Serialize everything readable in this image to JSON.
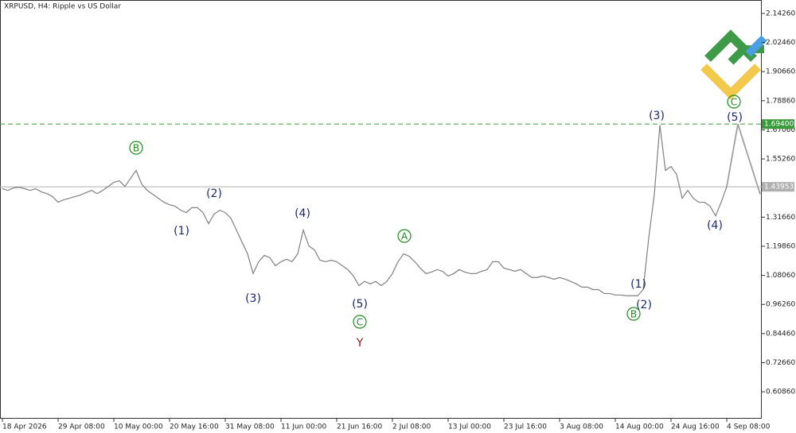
{
  "chart_data": {
    "type": "line",
    "title": "XRPUSD, H4:  Ripple vs US Dollar",
    "categories": [
      "18 Apr 2026",
      null,
      null,
      null,
      null,
      null,
      null,
      null,
      null,
      null,
      "29 Apr 08:00",
      null,
      null,
      null,
      null,
      null,
      null,
      null,
      null,
      null,
      "10 May 00:00",
      null,
      null,
      null,
      null,
      null,
      null,
      null,
      null,
      null,
      "20 May 16:00",
      null,
      null,
      null,
      null,
      null,
      null,
      null,
      null,
      null,
      "31 May 08:00",
      null,
      null,
      null,
      null,
      null,
      null,
      null,
      null,
      null,
      "11 Jun 00:00",
      null,
      null,
      null,
      null,
      null,
      null,
      null,
      null,
      null,
      "21 Jun 16:00",
      null,
      null,
      null,
      null,
      null,
      null,
      null,
      null,
      null,
      "2 Jul 08:00",
      null,
      null,
      null,
      null,
      null,
      null,
      null,
      null,
      null,
      "13 Jul 00:00",
      null,
      null,
      null,
      null,
      null,
      null,
      null,
      null,
      null,
      "23 Jul 16:00",
      null,
      null,
      null,
      null,
      null,
      null,
      null,
      null,
      null,
      "3 Aug 08:00",
      null,
      null,
      null,
      null,
      null,
      null,
      null,
      null,
      null,
      "14 Aug 00:00",
      null,
      null,
      null,
      null,
      null,
      null,
      null,
      null,
      null,
      "24 Aug 16:00",
      null,
      null,
      null,
      null,
      null,
      null,
      null,
      null,
      null,
      "4 Sep 08:00",
      null,
      null,
      null,
      null,
      null,
      null
    ],
    "series": [
      {
        "color": "#808080",
        "values": [
          1.432,
          1.425,
          1.435,
          1.438,
          1.432,
          1.425,
          1.432,
          1.419,
          1.412,
          1.4,
          1.377,
          1.387,
          1.393,
          1.4,
          1.406,
          1.416,
          1.425,
          1.412,
          1.425,
          1.441,
          1.458,
          1.464,
          1.441,
          1.474,
          1.506,
          1.451,
          1.425,
          1.409,
          1.393,
          1.377,
          1.367,
          1.361,
          1.345,
          1.335,
          1.355,
          1.355,
          1.335,
          1.29,
          1.329,
          1.345,
          1.335,
          1.313,
          1.264,
          1.216,
          1.168,
          1.088,
          1.136,
          1.162,
          1.152,
          1.12,
          1.136,
          1.146,
          1.136,
          1.168,
          1.264,
          1.2,
          1.184,
          1.142,
          1.136,
          1.142,
          1.136,
          1.12,
          1.104,
          1.078,
          1.039,
          1.056,
          1.046,
          1.056,
          1.039,
          1.056,
          1.088,
          1.136,
          1.168,
          1.158,
          1.136,
          1.11,
          1.088,
          1.094,
          1.104,
          1.097,
          1.078,
          1.088,
          1.104,
          1.094,
          1.088,
          1.088,
          1.097,
          1.104,
          1.136,
          1.136,
          1.11,
          1.104,
          1.097,
          1.104,
          1.088,
          1.072,
          1.072,
          1.078,
          1.072,
          1.065,
          1.072,
          1.065,
          1.056,
          1.046,
          1.033,
          1.033,
          1.023,
          1.023,
          1.007,
          1.007,
          1.001,
          1.001,
          0.998,
          0.998,
          0.998,
          1.023,
          1.232,
          1.409,
          1.69,
          1.506,
          1.522,
          1.49,
          1.393,
          1.425,
          1.393,
          1.377,
          1.377,
          1.361,
          1.322,
          1.377,
          1.44,
          null,
          null,
          null,
          null,
          null,
          null
        ]
      },
      {
        "color": "#a0a0a0",
        "values": [
          null,
          null,
          null,
          null,
          null,
          null,
          null,
          null,
          null,
          null,
          null,
          null,
          null,
          null,
          null,
          null,
          null,
          null,
          null,
          null,
          null,
          null,
          null,
          null,
          null,
          null,
          null,
          null,
          null,
          null,
          null,
          null,
          null,
          null,
          null,
          null,
          null,
          null,
          null,
          null,
          null,
          null,
          null,
          null,
          null,
          null,
          null,
          null,
          null,
          null,
          null,
          null,
          null,
          null,
          null,
          null,
          null,
          null,
          null,
          null,
          null,
          null,
          null,
          null,
          null,
          null,
          null,
          null,
          null,
          null,
          null,
          null,
          null,
          null,
          null,
          null,
          null,
          null,
          null,
          null,
          null,
          null,
          null,
          null,
          null,
          null,
          null,
          null,
          null,
          null,
          null,
          null,
          null,
          null,
          null,
          null,
          null,
          null,
          null,
          null,
          null,
          null,
          null,
          null,
          null,
          null,
          null,
          null,
          null,
          null,
          null,
          null,
          null,
          null,
          null,
          null,
          null,
          null,
          null,
          null,
          null,
          null,
          null,
          null,
          null,
          null,
          null,
          null,
          null,
          null,
          1.44,
          1.567,
          1.694,
          1.623,
          1.552,
          1.481,
          1.41
        ]
      }
    ],
    "ylim": [
      0.4995,
      2.197
    ],
    "yticks": [
      {
        "value": 2.1426,
        "label": "2.14260"
      },
      {
        "value": 2.0246,
        "label": "2.02460"
      },
      {
        "value": 1.9066,
        "label": "1.90660"
      },
      {
        "value": 1.7886,
        "label": "1.78860"
      },
      {
        "value": 1.6706,
        "label": "1.67060"
      },
      {
        "value": 1.5526,
        "label": "1.55260"
      },
      {
        "value": 1.3166,
        "label": "1.31660"
      },
      {
        "value": 1.1986,
        "label": "1.19860"
      },
      {
        "value": 1.0806,
        "label": "1.08060"
      },
      {
        "value": 0.9626,
        "label": "0.96260"
      },
      {
        "value": 0.8446,
        "label": "0.84460"
      },
      {
        "value": 0.7266,
        "label": "0.72660"
      },
      {
        "value": 0.6086,
        "label": "0.60860"
      }
    ],
    "hlines": [
      {
        "value": 1.694,
        "label": "1.69400",
        "color": "#3a9a3a",
        "dashed": true
      },
      {
        "value": 1.43953,
        "label": "1.43953",
        "color": "#b0b0b0",
        "dashed": false
      }
    ],
    "annotations": [
      {
        "text": "B",
        "circled": true,
        "color": "#1f8a1f"
      },
      {
        "text": "(1)",
        "circled": false,
        "color": "#1c2a6e"
      },
      {
        "text": "(2)",
        "circled": false,
        "color": "#1c2a6e"
      },
      {
        "text": "(3)",
        "circled": false,
        "color": "#1c2a6e"
      },
      {
        "text": "(4)",
        "circled": false,
        "color": "#1c2a6e"
      },
      {
        "text": "(5)",
        "circled": false,
        "color": "#1c2a6e"
      },
      {
        "text": "C",
        "circled": true,
        "color": "#1f8a1f"
      },
      {
        "text": "Y",
        "circled": false,
        "color": "#8b1a1a"
      },
      {
        "text": "A",
        "circled": true,
        "color": "#1f8a1f"
      },
      {
        "text": "(1)",
        "circled": false,
        "color": "#1c2a6e"
      },
      {
        "text": "(2)",
        "circled": false,
        "color": "#1c2a6e"
      },
      {
        "text": "B",
        "circled": true,
        "color": "#1f8a1f"
      },
      {
        "text": "(3)",
        "circled": false,
        "color": "#1c2a6e"
      },
      {
        "text": "(4)",
        "circled": false,
        "color": "#1c2a6e"
      },
      {
        "text": "(5)",
        "circled": false,
        "color": "#1c2a6e"
      },
      {
        "text": "C",
        "circled": true,
        "color": "#1f8a1f"
      }
    ]
  }
}
